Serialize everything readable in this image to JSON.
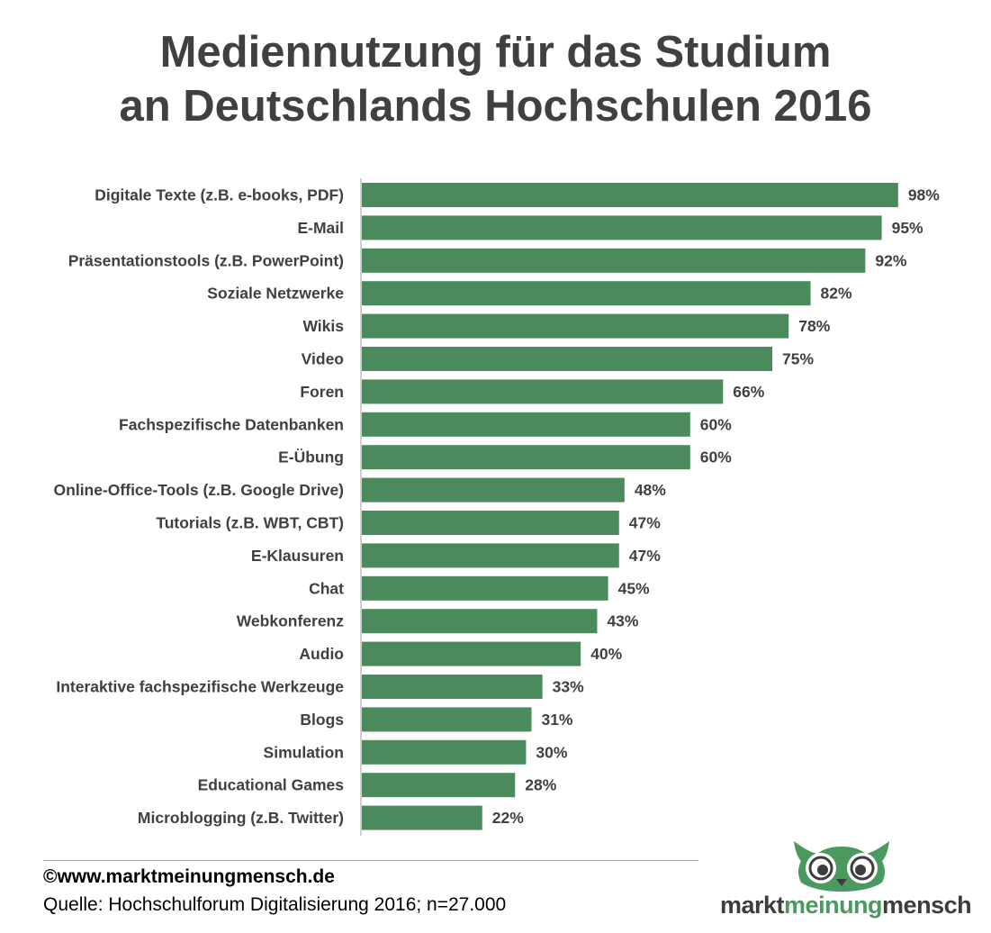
{
  "title": {
    "line1": "Mediennutzung für das Studium",
    "line2": "an Deutschlands Hochschulen 2016"
  },
  "chart_data": {
    "type": "bar",
    "orientation": "horizontal",
    "title": "Mediennutzung für das Studium an Deutschlands Hochschulen 2016",
    "xlabel": "",
    "ylabel": "",
    "xlim": [
      0,
      100
    ],
    "grid": false,
    "unit": "%",
    "bar_color": "#4a8a5c",
    "categories": [
      "Digitale Texte (z.B. e-books, PDF)",
      "E-Mail",
      "Präsentationstools (z.B. PowerPoint)",
      "Soziale Netzwerke",
      "Wikis",
      "Video",
      "Foren",
      "Fachspezifische Datenbanken",
      "E-Übung",
      "Online-Office-Tools (z.B. Google Drive)",
      "Tutorials (z.B. WBT, CBT)",
      "E-Klausuren",
      "Chat",
      "Webkonferenz",
      "Audio",
      "Interaktive fachspezifische Werkzeuge",
      "Blogs",
      "Simulation",
      "Educational Games",
      "Microblogging (z.B. Twitter)"
    ],
    "values": [
      98,
      95,
      92,
      82,
      78,
      75,
      66,
      60,
      60,
      48,
      47,
      47,
      45,
      43,
      40,
      33,
      31,
      30,
      28,
      22
    ]
  },
  "footer": {
    "copyright": "©www.marktmeinungmensch.de",
    "source": "Quelle: Hochschulforum Digitalisierung 2016; n=27.000"
  },
  "logo": {
    "word1": "markt",
    "word2": "meinung",
    "word3": "mensch",
    "color_dark": "#3d3d3d",
    "color_green": "#4a9a5f"
  }
}
